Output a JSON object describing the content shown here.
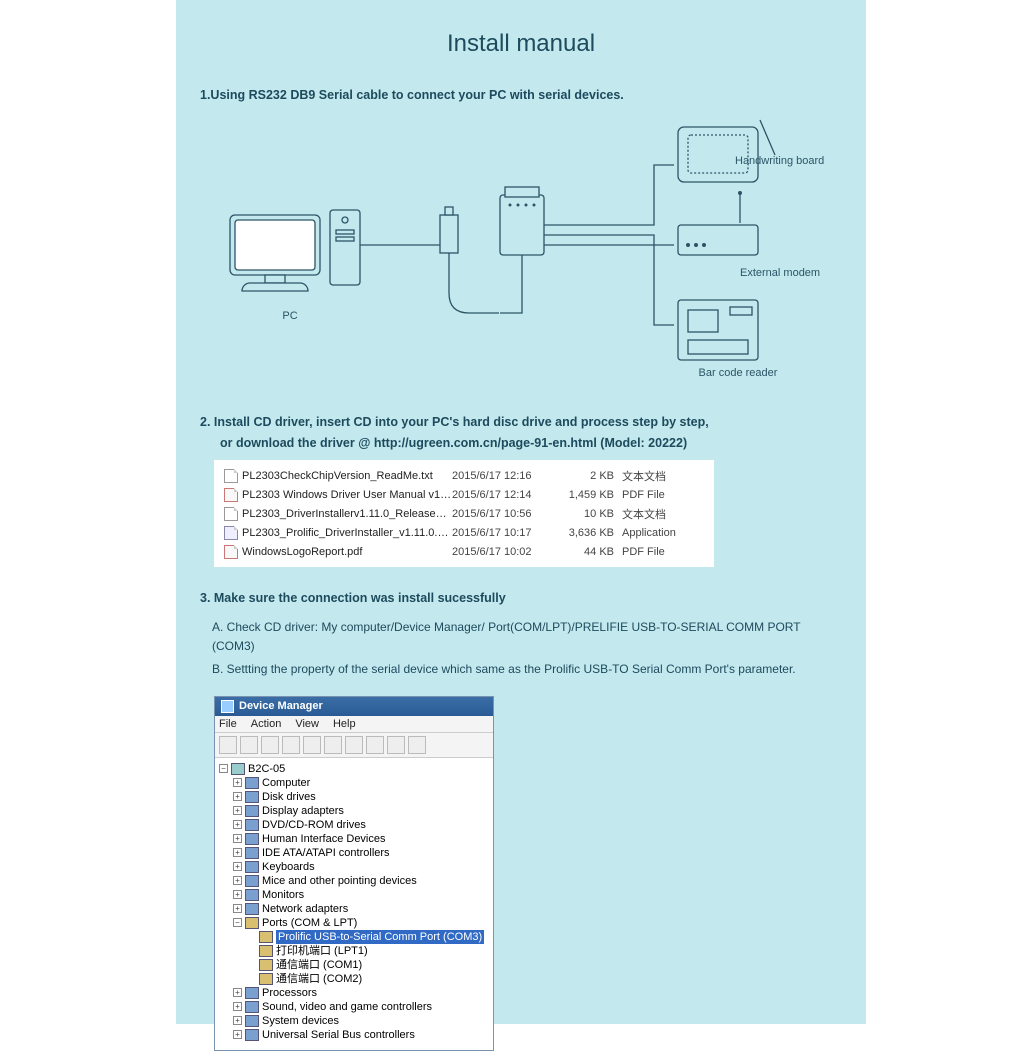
{
  "title": "Install manual",
  "step1": "1.Using RS232 DB9 Serial cable to connect your PC with serial devices.",
  "diagram": {
    "pc": "PC",
    "handwriting": "Handwriting board",
    "modem": "External modem",
    "barcode": "Bar code reader"
  },
  "step2a": "2.  Install CD driver,   insert CD into your PC's hard disc drive and process step by step,",
  "step2b": "or download the driver @ http://ugreen.com.cn/page-91-en.html   (Model: 20222)",
  "files": [
    {
      "icon": "txt",
      "name": "PL2303CheckChipVersion_ReadMe.txt",
      "date": "2015/6/17 12:16",
      "size": "2 KB",
      "type": "文本文档"
    },
    {
      "icon": "pdf",
      "name": "PL2303 Windows Driver User Manual v1.11.0...",
      "date": "2015/6/17 12:14",
      "size": "1,459 KB",
      "type": "PDF File"
    },
    {
      "icon": "txt",
      "name": "PL2303_DriverInstallerv1.11.0_ReleaseNote...",
      "date": "2015/6/17 10:56",
      "size": "10 KB",
      "type": "文本文档"
    },
    {
      "icon": "exe",
      "name": "PL2303_Prolific_DriverInstaller_v1.11.0.exe",
      "date": "2015/6/17 10:17",
      "size": "3,636 KB",
      "type": "Application"
    },
    {
      "icon": "pdf",
      "name": "WindowsLogoReport.pdf",
      "date": "2015/6/17 10:02",
      "size": "44 KB",
      "type": "PDF File"
    }
  ],
  "step3": "3. Make sure the connection was install sucessfully",
  "step3a": "A.  Check CD driver: My computer/Device Manager/ Port(COM/LPT)/PRELIFIE USB-TO-SERIAL COMM PORT (COM3)",
  "step3b": "B.  Settting the property of the serial device which same as the Prolific USB-TO Serial Comm Port's parameter.",
  "dm": {
    "title": "Device Manager",
    "menu": [
      "File",
      "Action",
      "View",
      "Help"
    ],
    "root": "B2C-05",
    "nodes": [
      "Computer",
      "Disk drives",
      "Display adapters",
      "DVD/CD-ROM drives",
      "Human Interface Devices",
      "IDE ATA/ATAPI controllers",
      "Keyboards",
      "Mice and other pointing devices",
      "Monitors",
      "Network adapters"
    ],
    "ports_label": "Ports (COM & LPT)",
    "ports": [
      {
        "label": "Prolific USB-to-Serial Comm Port (COM3)",
        "sel": true
      },
      {
        "label": "打印机端口 (LPT1)",
        "sel": false
      },
      {
        "label": "通信端口 (COM1)",
        "sel": false
      },
      {
        "label": "通信端口 (COM2)",
        "sel": false
      }
    ],
    "tail": [
      "Processors",
      "Sound, video and game controllers",
      "System devices",
      "Universal Serial Bus controllers"
    ]
  }
}
